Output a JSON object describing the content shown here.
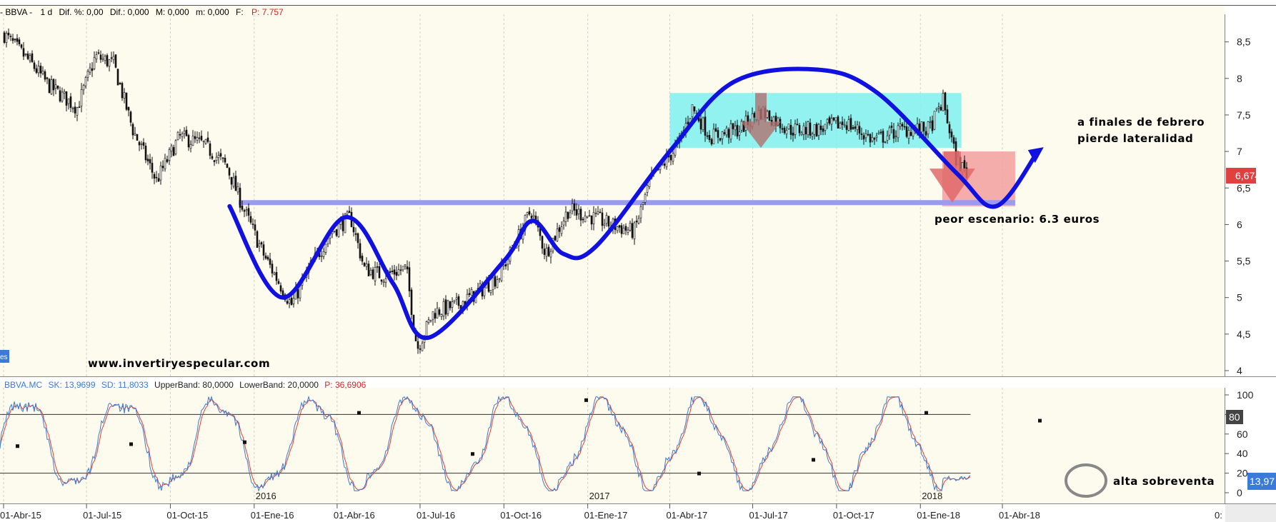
{
  "header": {
    "symbol": "- BBVA -",
    "interval": "1 d",
    "dif_pct": "Dif. %: 0,00",
    "dif": "Dif.: 0,000",
    "max": "M: 0,000",
    "min": "m: 0,000",
    "f": "F:",
    "price_label": "P: 7.757"
  },
  "osc_header": {
    "symbol": "BBVA.MC",
    "sk": "SK: 13,9699",
    "sd": "SD: 11,8033",
    "upper": "UpperBand: 80,0000",
    "lower": "LowerBand: 20,0000",
    "p": "P: 36,6906"
  },
  "left_tab": "es",
  "price_badge": "6,674",
  "osc_badge": "13,97",
  "osc_badge_80": "80",
  "watermark": "www.invertiryespecular.com",
  "annotations": {
    "line1": "a finales de febrero",
    "line2": "pierde lateralidad",
    "worst": "peor escenario: 6.3 euros",
    "oversold": "alta sobreventa"
  },
  "colors": {
    "background": "#fdfaee",
    "candles": "#111111",
    "trend_curve": "#1010e0",
    "support_line": "#9a9af0",
    "range_box": "#7ff0f0",
    "risk_box": "#f29a9a",
    "down_arrow": "#e06a6a",
    "sk_line": "#3a7ad8",
    "sd_line": "#e04030",
    "badge_price": "#e04040",
    "badge_osc": "#3a7ad8"
  },
  "chart_data": [
    {
      "type": "candlestick",
      "title": "BBVA - 1 d",
      "xlabel": "",
      "ylabel": "",
      "x_ticks": [
        "01-Abr-15",
        "01-Jul-15",
        "01-Oct-15",
        "01-Ene-16",
        "01-Abr-16",
        "01-Jul-16",
        "01-Oct-16",
        "01-Ene-17",
        "01-Abr-17",
        "01-Jul-17",
        "01-Oct-17",
        "01-Ene-18",
        "01-Abr-18",
        "0:"
      ],
      "year_labels": [
        "2016",
        "2017",
        "2018"
      ],
      "y_ticks": [
        4,
        4.5,
        5,
        5.5,
        6,
        6.5,
        7,
        7.5,
        8,
        8.5
      ],
      "ylim": [
        3.95,
        8.85
      ],
      "grid": true,
      "close_path": [
        {
          "date": "2015-04-01",
          "value": 8.6
        },
        {
          "date": "2015-05-01",
          "value": 8.2
        },
        {
          "date": "2015-05-20",
          "value": 7.9
        },
        {
          "date": "2015-06-20",
          "value": 7.6
        },
        {
          "date": "2015-07-10",
          "value": 8.3
        },
        {
          "date": "2015-07-30",
          "value": 8.2
        },
        {
          "date": "2015-08-20",
          "value": 7.3
        },
        {
          "date": "2015-09-15",
          "value": 6.6
        },
        {
          "date": "2015-10-10",
          "value": 7.2
        },
        {
          "date": "2015-11-05",
          "value": 7.1
        },
        {
          "date": "2015-12-01",
          "value": 6.8
        },
        {
          "date": "2015-12-20",
          "value": 6.2
        },
        {
          "date": "2016-01-10",
          "value": 5.6
        },
        {
          "date": "2016-02-10",
          "value": 4.9
        },
        {
          "date": "2016-03-01",
          "value": 5.4
        },
        {
          "date": "2016-03-25",
          "value": 5.9
        },
        {
          "date": "2016-04-15",
          "value": 6.1
        },
        {
          "date": "2016-04-30",
          "value": 5.4
        },
        {
          "date": "2016-05-20",
          "value": 5.3
        },
        {
          "date": "2016-06-15",
          "value": 5.4
        },
        {
          "date": "2016-06-27",
          "value": 4.3
        },
        {
          "date": "2016-07-15",
          "value": 4.8
        },
        {
          "date": "2016-08-10",
          "value": 4.9
        },
        {
          "date": "2016-09-05",
          "value": 5.1
        },
        {
          "date": "2016-09-25",
          "value": 5.3
        },
        {
          "date": "2016-10-15",
          "value": 5.8
        },
        {
          "date": "2016-10-30",
          "value": 6.2
        },
        {
          "date": "2016-11-15",
          "value": 5.6
        },
        {
          "date": "2016-12-10",
          "value": 6.2
        },
        {
          "date": "2017-01-05",
          "value": 6.1
        },
        {
          "date": "2017-01-25",
          "value": 6.0
        },
        {
          "date": "2017-02-20",
          "value": 5.9
        },
        {
          "date": "2017-03-10",
          "value": 6.6
        },
        {
          "date": "2017-04-10",
          "value": 7.1
        },
        {
          "date": "2017-04-25",
          "value": 7.6
        },
        {
          "date": "2017-05-15",
          "value": 7.2
        },
        {
          "date": "2017-06-15",
          "value": 7.3
        },
        {
          "date": "2017-07-10",
          "value": 7.55
        },
        {
          "date": "2017-08-10",
          "value": 7.3
        },
        {
          "date": "2017-09-10",
          "value": 7.3
        },
        {
          "date": "2017-10-10",
          "value": 7.4
        },
        {
          "date": "2017-11-10",
          "value": 7.15
        },
        {
          "date": "2017-12-10",
          "value": 7.3
        },
        {
          "date": "2018-01-10",
          "value": 7.3
        },
        {
          "date": "2018-01-25",
          "value": 7.7
        },
        {
          "date": "2018-02-08",
          "value": 6.9
        },
        {
          "date": "2018-02-22",
          "value": 6.67
        }
      ],
      "last_value": 6.674,
      "support_level": 6.3,
      "range_box": {
        "from": "2017-04-01",
        "to": "2018-02-15",
        "low": 7.05,
        "high": 7.8
      },
      "risk_box": {
        "from": "2018-01-25",
        "to": "2018-04-15",
        "low": 6.25,
        "high": 7.0
      },
      "projection_curve": [
        {
          "date": "2015-12-05",
          "value": 6.25
        },
        {
          "date": "2016-02-01",
          "value": 5.0
        },
        {
          "date": "2016-04-10",
          "value": 6.1
        },
        {
          "date": "2016-06-01",
          "value": 5.2
        },
        {
          "date": "2016-07-10",
          "value": 4.45
        },
        {
          "date": "2016-10-01",
          "value": 5.5
        },
        {
          "date": "2016-11-01",
          "value": 6.05
        },
        {
          "date": "2016-12-05",
          "value": 5.6
        },
        {
          "date": "2017-01-10",
          "value": 5.7
        },
        {
          "date": "2017-04-01",
          "value": 7.0
        },
        {
          "date": "2017-06-10",
          "value": 7.95
        },
        {
          "date": "2017-09-10",
          "value": 8.12
        },
        {
          "date": "2017-11-15",
          "value": 7.8
        },
        {
          "date": "2018-02-10",
          "value": 6.7
        },
        {
          "date": "2018-03-25",
          "value": 6.25
        },
        {
          "date": "2018-05-10",
          "value": 7.0
        }
      ]
    },
    {
      "type": "line",
      "title": "BBVA.MC",
      "xlabel": "",
      "ylabel": "",
      "y_ticks": [
        0,
        20,
        40,
        60,
        80,
        100
      ],
      "ylim": [
        -2,
        103
      ],
      "bands": [
        20,
        80
      ],
      "series": [
        {
          "name": "SK",
          "last": 13.9699
        },
        {
          "name": "SD",
          "last": 11.8033
        }
      ],
      "oversold_reading": {
        "date": "2018-02-22",
        "value": 14
      }
    }
  ]
}
